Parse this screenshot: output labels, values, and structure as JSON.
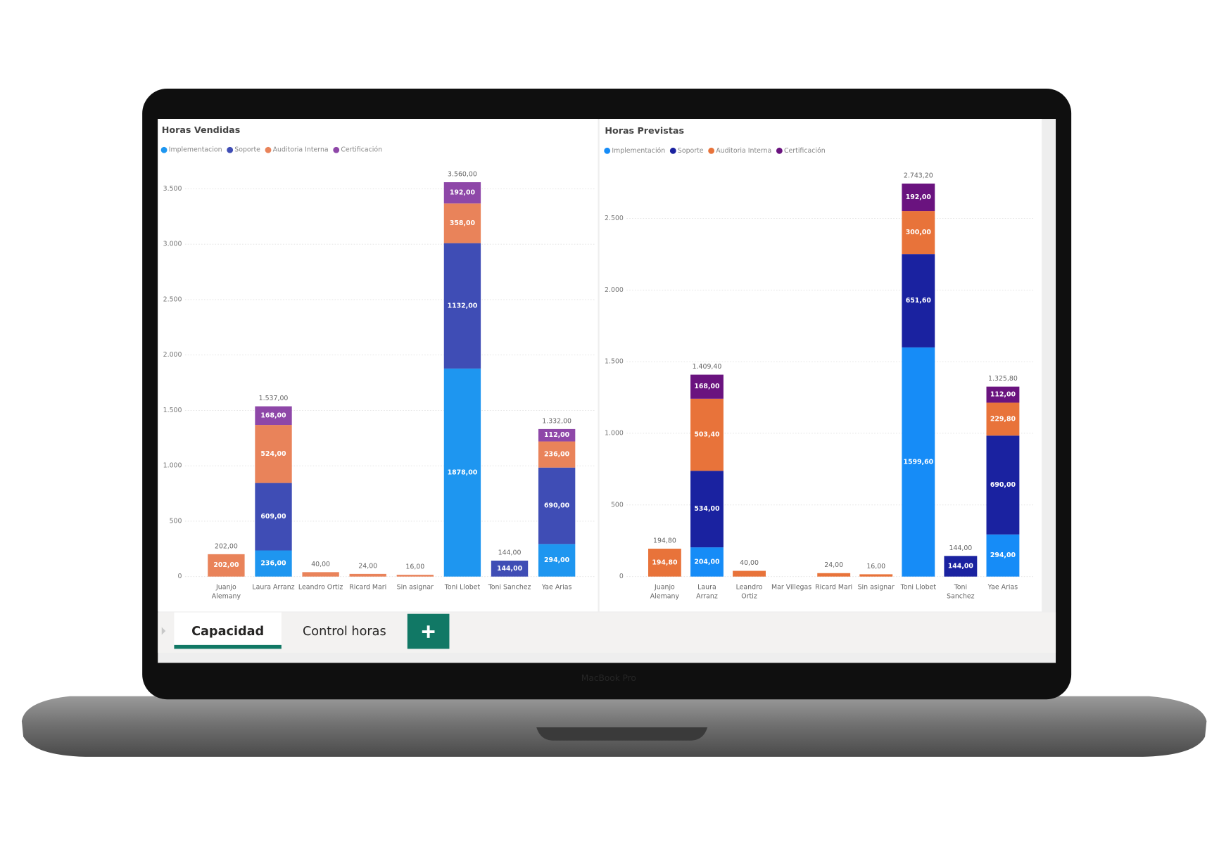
{
  "chart_data": [
    {
      "type": "bar",
      "stacked": true,
      "title": "Horas Vendidas",
      "categories": [
        "Juanjo Alemany",
        "Laura Arranz",
        "Leandro Ortiz",
        "Ricard Mari",
        "Sin asignar",
        "Toni Llobet",
        "Toni Sanchez",
        "Yae Arias"
      ],
      "series": [
        {
          "name": "Implementacion",
          "color": "#1e96f0",
          "values": [
            null,
            236,
            null,
            null,
            null,
            1878,
            null,
            294
          ],
          "value_labels": [
            null,
            "236,00",
            null,
            null,
            null,
            "1878,00",
            null,
            "294,00"
          ]
        },
        {
          "name": "Soporte",
          "color": "#3f4db5",
          "values": [
            null,
            609,
            null,
            null,
            null,
            1132,
            144,
            690
          ],
          "value_labels": [
            null,
            "609,00",
            null,
            null,
            null,
            "1132,00",
            "144,00",
            "690,00"
          ]
        },
        {
          "name": "Auditoria Interna",
          "color": "#e9835a",
          "values": [
            202,
            524,
            40,
            24,
            16,
            358,
            null,
            236
          ],
          "value_labels": [
            "202,00",
            "524,00",
            null,
            null,
            null,
            "358,00",
            null,
            "236,00"
          ]
        },
        {
          "name": "Certificación",
          "color": "#8e47a8",
          "values": [
            null,
            168,
            null,
            null,
            null,
            192,
            null,
            112
          ],
          "value_labels": [
            null,
            "168,00",
            null,
            null,
            null,
            "192,00",
            null,
            "112,00"
          ]
        }
      ],
      "totals": [
        202,
        1537,
        40,
        24,
        16,
        3560,
        144,
        1332
      ],
      "total_labels": [
        "202,00",
        "1.537,00",
        "40,00",
        "24,00",
        "16,00",
        "3.560,00",
        "144,00",
        "1.332,00"
      ],
      "ylim": [
        0,
        3700
      ],
      "yticks": [
        0,
        500,
        {
          "value": 1000,
          "label": "1.000"
        },
        {
          "value": 1500,
          "label": "1.500"
        },
        {
          "value": 2000,
          "label": "2.000"
        },
        {
          "value": 2500,
          "label": "2.500"
        },
        {
          "value": 3000,
          "label": "3.000"
        },
        {
          "value": 3500,
          "label": "3.500"
        }
      ],
      "grid": true
    },
    {
      "type": "bar",
      "stacked": true,
      "title": "Horas Previstas",
      "categories": [
        "Juanjo Alemany",
        "Laura Arranz",
        "Leandro Ortiz",
        "Mar Villegas",
        "Ricard Mari",
        "Sin asignar",
        "Toni Llobet",
        "Toni Sanchez",
        "Yae Arias"
      ],
      "series": [
        {
          "name": "Implementación",
          "color": "#168cf7",
          "values": [
            null,
            204,
            null,
            null,
            null,
            null,
            1599.6,
            null,
            294
          ],
          "value_labels": [
            null,
            "204,00",
            null,
            null,
            null,
            null,
            "1599,60",
            null,
            "294,00"
          ]
        },
        {
          "name": "Soporte",
          "color": "#1a22a0",
          "values": [
            null,
            534,
            null,
            null,
            null,
            null,
            651.6,
            144,
            690
          ],
          "value_labels": [
            null,
            "534,00",
            null,
            null,
            null,
            null,
            "651,60",
            "144,00",
            "690,00"
          ]
        },
        {
          "name": "Auditoria Interna",
          "color": "#e8733a",
          "values": [
            194.8,
            503.4,
            40,
            null,
            24,
            16,
            300,
            null,
            229.8
          ],
          "value_labels": [
            "194,80",
            "503,40",
            null,
            null,
            null,
            null,
            "300,00",
            null,
            "229,80"
          ]
        },
        {
          "name": "Certificación",
          "color": "#6a137f",
          "values": [
            null,
            168,
            null,
            null,
            null,
            null,
            192,
            null,
            112
          ],
          "value_labels": [
            null,
            "168,00",
            null,
            null,
            null,
            null,
            "192,00",
            null,
            "112,00"
          ]
        }
      ],
      "totals": [
        194.8,
        1409.4,
        40,
        null,
        24,
        16,
        2743.2,
        144,
        1325.8
      ],
      "total_labels": [
        "194,80",
        "1.409,40",
        "40,00",
        null,
        "24,00",
        "16,00",
        "2.743,20",
        "144,00",
        "1.325,80"
      ],
      "ylim": [
        0,
        2850
      ],
      "yticks": [
        0,
        500,
        {
          "value": 1000,
          "label": "1.000"
        },
        {
          "value": 1500,
          "label": "1.500"
        },
        {
          "value": 2000,
          "label": "2.000"
        },
        {
          "value": 2500,
          "label": "2.500"
        }
      ],
      "grid": true
    }
  ],
  "tabs": [
    "Capacidad",
    "Control horas"
  ],
  "device_label": "MacBook Pro"
}
